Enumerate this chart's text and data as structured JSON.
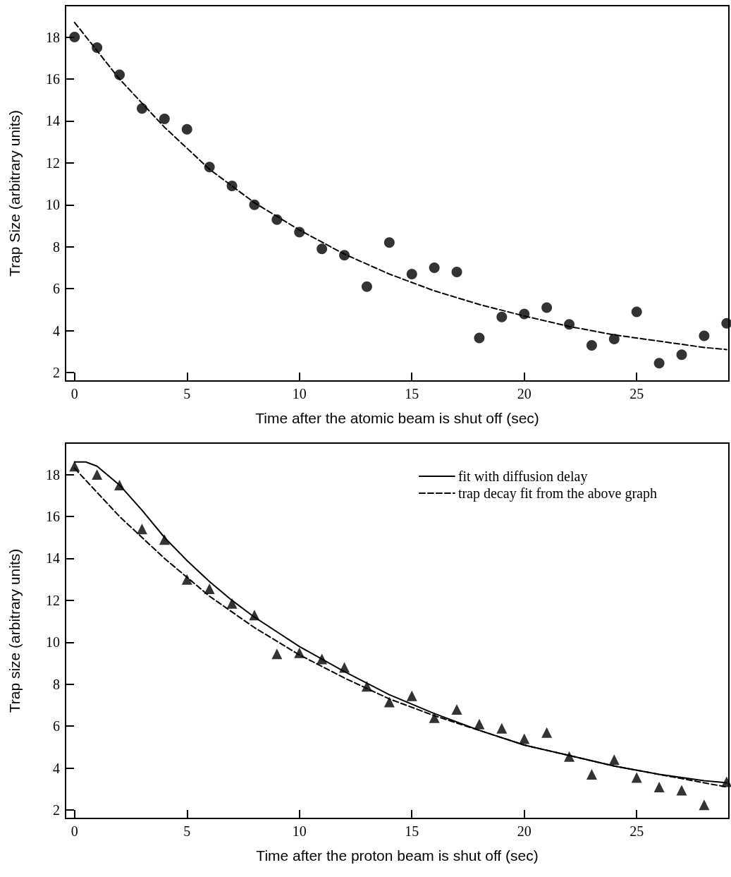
{
  "chart_data": [
    {
      "type": "scatter",
      "xlabel": "Time after the atomic beam is shut off (sec)",
      "ylabel": "Trap Size (arbitrary units)",
      "xlim": [
        -0.4,
        29.1
      ],
      "ylim": [
        1.6,
        19.5
      ],
      "xticks": [
        0,
        5,
        10,
        15,
        20,
        25
      ],
      "yticks": [
        2,
        4,
        6,
        8,
        10,
        12,
        14,
        16,
        18
      ],
      "grid": false,
      "legend": false,
      "series": [
        {
          "marker": "circle",
          "color": "#000000",
          "x": [
            0,
            1,
            2,
            3,
            4,
            5,
            6,
            7,
            8,
            9,
            10,
            11,
            12,
            13,
            14,
            15,
            16,
            17,
            18,
            19,
            20,
            21,
            22,
            23,
            24,
            25,
            26,
            27,
            28,
            29
          ],
          "values": [
            18.0,
            17.5,
            16.2,
            14.6,
            14.1,
            13.6,
            11.8,
            10.9,
            10.0,
            9.3,
            8.7,
            7.9,
            7.6,
            6.1,
            8.2,
            6.7,
            7.0,
            6.8,
            3.65,
            4.65,
            4.8,
            5.1,
            4.3,
            3.3,
            3.6,
            4.9,
            2.45,
            2.85,
            3.75,
            4.35
          ]
        },
        {
          "type": "line",
          "marker": "none",
          "line_style": "dashed",
          "color": "#000000",
          "x": [
            0,
            2,
            4,
            6,
            8,
            10,
            12,
            14,
            16,
            18,
            20,
            22,
            24,
            26,
            28,
            29
          ],
          "values": [
            18.7,
            16.0,
            13.7,
            11.7,
            10.1,
            8.8,
            7.65,
            6.7,
            5.9,
            5.25,
            4.7,
            4.2,
            3.8,
            3.5,
            3.2,
            3.1
          ]
        }
      ]
    },
    {
      "type": "scatter",
      "xlabel": "Time after the proton beam is shut off (sec)",
      "ylabel": "Trap size (arbitrary units)",
      "xlim": [
        -0.4,
        29.1
      ],
      "ylim": [
        1.6,
        19.5
      ],
      "xticks": [
        0,
        5,
        10,
        15,
        20,
        25
      ],
      "yticks": [
        2,
        4,
        6,
        8,
        10,
        12,
        14,
        16,
        18
      ],
      "grid": false,
      "legend": "top right",
      "series": [
        {
          "marker": "triangle",
          "color": "#000000",
          "x": [
            0,
            1,
            2,
            3,
            4,
            5,
            6,
            7,
            8,
            9,
            10,
            11,
            12,
            13,
            14,
            15,
            16,
            17,
            18,
            19,
            20,
            21,
            22,
            23,
            24,
            25,
            26,
            27,
            28,
            29
          ],
          "values": [
            18.4,
            18.0,
            17.5,
            15.4,
            14.9,
            13.0,
            12.55,
            11.85,
            11.3,
            9.45,
            9.5,
            9.2,
            8.8,
            7.9,
            7.15,
            7.45,
            6.4,
            6.8,
            6.1,
            5.9,
            5.4,
            5.7,
            4.55,
            3.7,
            4.4,
            3.55,
            3.1,
            2.95,
            2.25,
            3.35
          ]
        },
        {
          "type": "line",
          "name": "fit with diffusion delay",
          "marker": "none",
          "line_style": "solid",
          "color": "#000000",
          "x": [
            0,
            0.5,
            1,
            2,
            3,
            4,
            5,
            6,
            7,
            8,
            9,
            10,
            12,
            14,
            16,
            18,
            20,
            22,
            24,
            26,
            28,
            29
          ],
          "values": [
            18.6,
            18.6,
            18.4,
            17.5,
            16.3,
            15.0,
            13.9,
            12.9,
            12.0,
            11.2,
            10.5,
            9.8,
            8.6,
            7.5,
            6.6,
            5.8,
            5.1,
            4.6,
            4.1,
            3.7,
            3.4,
            3.3
          ]
        },
        {
          "type": "line",
          "name": "trap decay fit from the above graph",
          "marker": "none",
          "line_style": "dashed",
          "color": "#000000",
          "x": [
            0,
            2,
            4,
            6,
            8,
            10,
            12,
            14,
            16,
            18,
            20,
            22,
            24,
            26,
            28,
            29
          ],
          "values": [
            18.3,
            16.0,
            14.0,
            12.2,
            10.7,
            9.4,
            8.3,
            7.3,
            6.5,
            5.8,
            5.1,
            4.6,
            4.1,
            3.7,
            3.3,
            3.1
          ]
        }
      ]
    }
  ]
}
